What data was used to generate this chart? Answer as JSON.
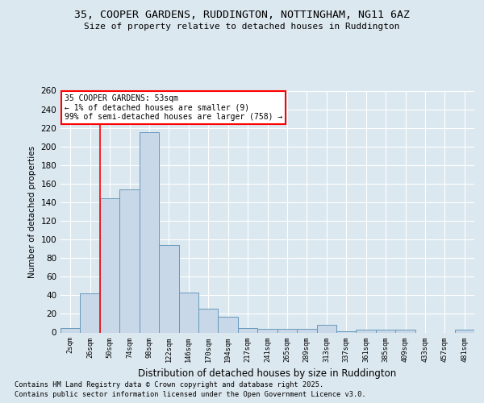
{
  "title_line1": "35, COOPER GARDENS, RUDDINGTON, NOTTINGHAM, NG11 6AZ",
  "title_line2": "Size of property relative to detached houses in Ruddington",
  "xlabel": "Distribution of detached houses by size in Ruddington",
  "ylabel": "Number of detached properties",
  "categories": [
    "2sqm",
    "26sqm",
    "50sqm",
    "74sqm",
    "98sqm",
    "122sqm",
    "146sqm",
    "170sqm",
    "194sqm",
    "217sqm",
    "241sqm",
    "265sqm",
    "289sqm",
    "313sqm",
    "337sqm",
    "361sqm",
    "385sqm",
    "409sqm",
    "433sqm",
    "457sqm",
    "481sqm"
  ],
  "values": [
    5,
    42,
    144,
    154,
    215,
    94,
    43,
    26,
    17,
    5,
    4,
    4,
    4,
    8,
    1,
    3,
    3,
    3,
    0,
    0,
    3
  ],
  "bar_color": "#c8d8e8",
  "bar_edge_color": "#6699bb",
  "background_color": "#dce8f0",
  "plot_bg_color": "#dce8f0",
  "grid_color": "#ffffff",
  "red_line_x": 1.5,
  "property_label": "35 COOPER GARDENS: 53sqm",
  "annotation_line1": "← 1% of detached houses are smaller (9)",
  "annotation_line2": "99% of semi-detached houses are larger (758) →",
  "ylim": [
    0,
    260
  ],
  "yticks": [
    0,
    20,
    40,
    60,
    80,
    100,
    120,
    140,
    160,
    180,
    200,
    220,
    240,
    260
  ],
  "footnote1": "Contains HM Land Registry data © Crown copyright and database right 2025.",
  "footnote2": "Contains public sector information licensed under the Open Government Licence v3.0."
}
